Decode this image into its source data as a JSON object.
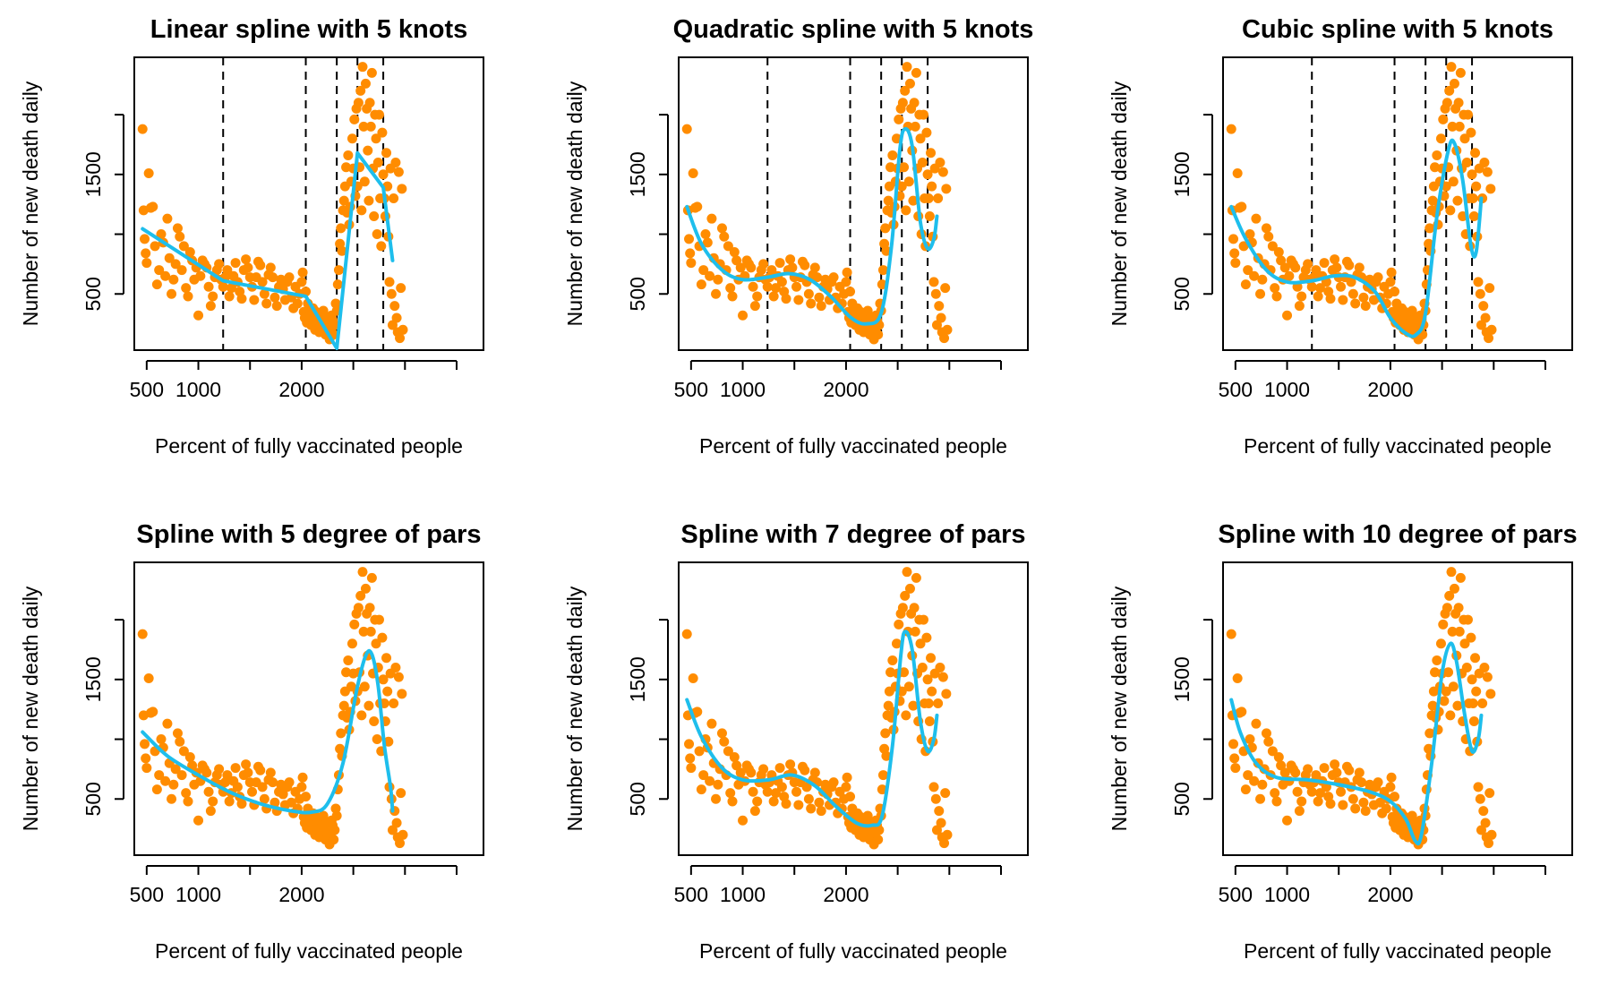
{
  "chart_data": [
    {
      "type": "scatter",
      "title": "Linear spline with 5 knots",
      "xlabel": "Percent of fully vaccinated people",
      "ylabel": "Number of new death daily",
      "xlim": [
        380,
        3760
      ],
      "ylim": [
        30,
        2480
      ],
      "xticks": [
        500,
        1000,
        1500,
        2000,
        2500,
        3000,
        3500
      ],
      "xtick_labels": [
        "500",
        "1000",
        "",
        "2000",
        "",
        "",
        ""
      ],
      "yticks": [
        500,
        1000,
        1500,
        2000
      ],
      "ytick_labels": [
        "500",
        "",
        "1500",
        ""
      ],
      "knots": [
        1240,
        2040,
        2340,
        2540,
        2790
      ],
      "series": [
        {
          "color": "#FF8C00",
          "points_ref": "observed"
        },
        {
          "color": "#1EBEEC",
          "curve": [
            [
              460,
              1045
            ],
            [
              1240,
              610
            ],
            [
              2040,
              480
            ],
            [
              2340,
              45
            ],
            [
              2540,
              1680
            ],
            [
              2790,
              1390
            ],
            [
              2880,
              780
            ]
          ]
        }
      ]
    },
    {
      "type": "scatter",
      "title": "Quadratic spline with 5 knots",
      "xlabel": "Percent of fully vaccinated people",
      "ylabel": "Number of new death daily",
      "xlim": [
        380,
        3760
      ],
      "ylim": [
        30,
        2480
      ],
      "xticks": [
        500,
        1000,
        1500,
        2000,
        2500,
        3000,
        3500
      ],
      "xtick_labels": [
        "500",
        "1000",
        "",
        "2000",
        "",
        "",
        ""
      ],
      "yticks": [
        500,
        1000,
        1500,
        2000
      ],
      "ytick_labels": [
        "500",
        "",
        "1500",
        ""
      ],
      "knots": [
        1240,
        2040,
        2340,
        2540,
        2790
      ],
      "series": [
        {
          "color": "#FF8C00",
          "points_ref": "observed"
        },
        {
          "color": "#1EBEEC",
          "curve": [
            [
              460,
              1230
            ],
            [
              600,
              920
            ],
            [
              800,
              700
            ],
            [
              1000,
              620
            ],
            [
              1240,
              640
            ],
            [
              1450,
              670
            ],
            [
              1650,
              620
            ],
            [
              1850,
              480
            ],
            [
              2050,
              300
            ],
            [
              2200,
              250
            ],
            [
              2340,
              340
            ],
            [
              2440,
              900
            ],
            [
              2520,
              1700
            ],
            [
              2570,
              1880
            ],
            [
              2640,
              1740
            ],
            [
              2720,
              1100
            ],
            [
              2790,
              880
            ],
            [
              2850,
              960
            ],
            [
              2880,
              1150
            ]
          ]
        }
      ]
    },
    {
      "type": "scatter",
      "title": "Cubic spline with 5 knots",
      "xlabel": "Percent of fully vaccinated people",
      "ylabel": "Number of new death daily",
      "xlim": [
        380,
        3760
      ],
      "ylim": [
        30,
        2480
      ],
      "xticks": [
        500,
        1000,
        1500,
        2000,
        2500,
        3000,
        3500
      ],
      "xtick_labels": [
        "500",
        "1000",
        "",
        "2000",
        "",
        "",
        ""
      ],
      "yticks": [
        500,
        1000,
        1500,
        2000
      ],
      "ytick_labels": [
        "500",
        "",
        "1500",
        ""
      ],
      "knots": [
        1240,
        2040,
        2340,
        2540,
        2790
      ],
      "series": [
        {
          "color": "#FF8C00",
          "points_ref": "observed"
        },
        {
          "color": "#1EBEEC",
          "curve": [
            [
              460,
              1230
            ],
            [
              600,
              960
            ],
            [
              800,
              700
            ],
            [
              1000,
              600
            ],
            [
              1240,
              610
            ],
            [
              1450,
              650
            ],
            [
              1650,
              640
            ],
            [
              1850,
              520
            ],
            [
              2000,
              300
            ],
            [
              2150,
              170
            ],
            [
              2250,
              160
            ],
            [
              2340,
              340
            ],
            [
              2450,
              1150
            ],
            [
              2560,
              1700
            ],
            [
              2620,
              1760
            ],
            [
              2700,
              1450
            ],
            [
              2780,
              900
            ],
            [
              2830,
              850
            ],
            [
              2880,
              1300
            ]
          ]
        }
      ]
    },
    {
      "type": "scatter",
      "title": "Spline with 5 degree of pars",
      "xlabel": "Percent of fully vaccinated people",
      "ylabel": "Number of new death daily",
      "xlim": [
        380,
        3760
      ],
      "ylim": [
        30,
        2480
      ],
      "xticks": [
        500,
        1000,
        1500,
        2000,
        2500,
        3000,
        3500
      ],
      "xtick_labels": [
        "500",
        "1000",
        "",
        "2000",
        "",
        "",
        ""
      ],
      "yticks": [
        500,
        1000,
        1500,
        2000
      ],
      "ytick_labels": [
        "500",
        "",
        "1500",
        ""
      ],
      "series": [
        {
          "color": "#FF8C00",
          "points_ref": "observed"
        },
        {
          "color": "#1EBEEC",
          "curve": [
            [
              460,
              1060
            ],
            [
              700,
              860
            ],
            [
              1000,
              700
            ],
            [
              1300,
              560
            ],
            [
              1600,
              460
            ],
            [
              1900,
              400
            ],
            [
              2100,
              390
            ],
            [
              2250,
              460
            ],
            [
              2400,
              800
            ],
            [
              2530,
              1400
            ],
            [
              2620,
              1700
            ],
            [
              2680,
              1710
            ],
            [
              2740,
              1450
            ],
            [
              2800,
              950
            ],
            [
              2860,
              600
            ],
            [
              2880,
              400
            ]
          ]
        }
      ]
    },
    {
      "type": "scatter",
      "title": "Spline with 7 degree of pars",
      "xlabel": "Percent of fully vaccinated people",
      "ylabel": "Number of new death daily",
      "xlim": [
        380,
        3760
      ],
      "ylim": [
        30,
        2480
      ],
      "xticks": [
        500,
        1000,
        1500,
        2000,
        2500,
        3000,
        3500
      ],
      "xtick_labels": [
        "500",
        "1000",
        "",
        "2000",
        "",
        "",
        ""
      ],
      "yticks": [
        500,
        1000,
        1500,
        2000
      ],
      "ytick_labels": [
        "500",
        "",
        "1500",
        ""
      ],
      "series": [
        {
          "color": "#FF8C00",
          "points_ref": "observed"
        },
        {
          "color": "#1EBEEC",
          "curve": [
            [
              460,
              1330
            ],
            [
              600,
              1020
            ],
            [
              800,
              760
            ],
            [
              1000,
              660
            ],
            [
              1250,
              660
            ],
            [
              1480,
              700
            ],
            [
              1700,
              610
            ],
            [
              1900,
              440
            ],
            [
              2100,
              300
            ],
            [
              2250,
              280
            ],
            [
              2350,
              360
            ],
            [
              2450,
              950
            ],
            [
              2530,
              1700
            ],
            [
              2570,
              1900
            ],
            [
              2640,
              1750
            ],
            [
              2720,
              1150
            ],
            [
              2790,
              900
            ],
            [
              2850,
              1000
            ],
            [
              2880,
              1200
            ]
          ]
        }
      ]
    },
    {
      "type": "scatter",
      "title": "Spline with 10 degree of pars",
      "xlabel": "Percent of fully vaccinated people",
      "ylabel": "Number of new death daily",
      "xlim": [
        380,
        3760
      ],
      "ylim": [
        30,
        2480
      ],
      "xticks": [
        500,
        1000,
        1500,
        2000,
        2500,
        3000,
        3500
      ],
      "xtick_labels": [
        "500",
        "1000",
        "",
        "2000",
        "",
        "",
        ""
      ],
      "yticks": [
        500,
        1000,
        1500,
        2000
      ],
      "ytick_labels": [
        "500",
        "",
        "1500",
        ""
      ],
      "series": [
        {
          "color": "#FF8C00",
          "points_ref": "observed"
        },
        {
          "color": "#1EBEEC",
          "curve": [
            [
              460,
              1330
            ],
            [
              550,
              1050
            ],
            [
              700,
              800
            ],
            [
              900,
              680
            ],
            [
              1200,
              660
            ],
            [
              1500,
              620
            ],
            [
              1800,
              560
            ],
            [
              2000,
              480
            ],
            [
              2150,
              330
            ],
            [
              2240,
              150
            ],
            [
              2300,
              200
            ],
            [
              2400,
              800
            ],
            [
              2500,
              1550
            ],
            [
              2580,
              1800
            ],
            [
              2640,
              1650
            ],
            [
              2720,
              1200
            ],
            [
              2790,
              900
            ],
            [
              2850,
              1000
            ],
            [
              2880,
              1200
            ]
          ]
        }
      ]
    }
  ],
  "observed_points": [
    [
      460,
      1880
    ],
    [
      470,
      1200
    ],
    [
      480,
      960
    ],
    [
      490,
      840
    ],
    [
      500,
      760
    ],
    [
      520,
      1510
    ],
    [
      540,
      1220
    ],
    [
      560,
      1230
    ],
    [
      580,
      900
    ],
    [
      600,
      580
    ],
    [
      620,
      700
    ],
    [
      640,
      1000
    ],
    [
      660,
      930
    ],
    [
      680,
      650
    ],
    [
      700,
      1130
    ],
    [
      720,
      800
    ],
    [
      740,
      500
    ],
    [
      760,
      620
    ],
    [
      780,
      750
    ],
    [
      800,
      1050
    ],
    [
      820,
      980
    ],
    [
      840,
      700
    ],
    [
      860,
      900
    ],
    [
      880,
      550
    ],
    [
      900,
      480
    ],
    [
      920,
      850
    ],
    [
      940,
      780
    ],
    [
      960,
      620
    ],
    [
      980,
      720
    ],
    [
      1000,
      320
    ],
    [
      1020,
      650
    ],
    [
      1040,
      780
    ],
    [
      1060,
      750
    ],
    [
      1080,
      720
    ],
    [
      1100,
      560
    ],
    [
      1120,
      400
    ],
    [
      1140,
      480
    ],
    [
      1160,
      640
    ],
    [
      1180,
      700
    ],
    [
      1200,
      750
    ],
    [
      1220,
      620
    ],
    [
      1240,
      560
    ],
    [
      1260,
      640
    ],
    [
      1280,
      700
    ],
    [
      1300,
      480
    ],
    [
      1320,
      550
    ],
    [
      1340,
      650
    ],
    [
      1360,
      760
    ],
    [
      1380,
      600
    ],
    [
      1400,
      520
    ],
    [
      1420,
      460
    ],
    [
      1440,
      700
    ],
    [
      1460,
      790
    ],
    [
      1480,
      720
    ],
    [
      1500,
      640
    ],
    [
      1520,
      560
    ],
    [
      1540,
      450
    ],
    [
      1560,
      640
    ],
    [
      1580,
      770
    ],
    [
      1600,
      740
    ],
    [
      1620,
      600
    ],
    [
      1640,
      500
    ],
    [
      1660,
      420
    ],
    [
      1680,
      660
    ],
    [
      1700,
      720
    ],
    [
      1720,
      640
    ],
    [
      1740,
      470
    ],
    [
      1760,
      400
    ],
    [
      1780,
      560
    ],
    [
      1800,
      620
    ],
    [
      1820,
      540
    ],
    [
      1840,
      450
    ],
    [
      1860,
      600
    ],
    [
      1880,
      640
    ],
    [
      1900,
      470
    ],
    [
      1920,
      380
    ],
    [
      1940,
      560
    ],
    [
      1960,
      420
    ],
    [
      1980,
      500
    ],
    [
      2000,
      600
    ],
    [
      2010,
      680
    ],
    [
      2020,
      350
    ],
    [
      2030,
      300
    ],
    [
      2040,
      520
    ],
    [
      2050,
      260
    ],
    [
      2060,
      420
    ],
    [
      2070,
      380
    ],
    [
      2080,
      320
    ],
    [
      2090,
      240
    ],
    [
      2100,
      300
    ],
    [
      2110,
      380
    ],
    [
      2120,
      280
    ],
    [
      2130,
      200
    ],
    [
      2140,
      350
    ],
    [
      2150,
      300
    ],
    [
      2160,
      240
    ],
    [
      2170,
      180
    ],
    [
      2180,
      320
    ],
    [
      2190,
      260
    ],
    [
      2200,
      200
    ],
    [
      2210,
      360
    ],
    [
      2220,
      280
    ],
    [
      2230,
      160
    ],
    [
      2240,
      220
    ],
    [
      2250,
      300
    ],
    [
      2260,
      150
    ],
    [
      2270,
      120
    ],
    [
      2280,
      200
    ],
    [
      2290,
      320
    ],
    [
      2300,
      280
    ],
    [
      2310,
      160
    ],
    [
      2320,
      240
    ],
    [
      2330,
      420
    ],
    [
      2340,
      360
    ],
    [
      2350,
      580
    ],
    [
      2360,
      700
    ],
    [
      2370,
      920
    ],
    [
      2380,
      1050
    ],
    [
      2390,
      860
    ],
    [
      2400,
      1200
    ],
    [
      2410,
      1280
    ],
    [
      2420,
      1400
    ],
    [
      2430,
      1560
    ],
    [
      2440,
      1180
    ],
    [
      2450,
      1660
    ],
    [
      2460,
      1080
    ],
    [
      2470,
      1230
    ],
    [
      2480,
      1440
    ],
    [
      2490,
      1800
    ],
    [
      2500,
      1550
    ],
    [
      2510,
      1960
    ],
    [
      2520,
      1320
    ],
    [
      2530,
      2050
    ],
    [
      2540,
      1400
    ],
    [
      2550,
      2100
    ],
    [
      2560,
      1560
    ],
    [
      2570,
      2200
    ],
    [
      2580,
      1200
    ],
    [
      2590,
      2400
    ],
    [
      2600,
      1900
    ],
    [
      2610,
      1440
    ],
    [
      2620,
      2260
    ],
    [
      2630,
      2050
    ],
    [
      2640,
      1700
    ],
    [
      2650,
      1280
    ],
    [
      2660,
      2100
    ],
    [
      2670,
      1900
    ],
    [
      2680,
      2350
    ],
    [
      2690,
      1550
    ],
    [
      2700,
      1150
    ],
    [
      2710,
      2000
    ],
    [
      2720,
      1800
    ],
    [
      2730,
      1000
    ],
    [
      2740,
      1600
    ],
    [
      2750,
      2000
    ],
    [
      2760,
      1300
    ],
    [
      2770,
      900
    ],
    [
      2780,
      1850
    ],
    [
      2790,
      1500
    ],
    [
      2800,
      1300
    ],
    [
      2810,
      1150
    ],
    [
      2820,
      1680
    ],
    [
      2830,
      1400
    ],
    [
      2840,
      980
    ],
    [
      2850,
      600
    ],
    [
      2860,
      1550
    ],
    [
      2870,
      500
    ],
    [
      2880,
      240
    ],
    [
      2890,
      1300
    ],
    [
      2900,
      400
    ],
    [
      2910,
      1600
    ],
    [
      2920,
      300
    ],
    [
      2930,
      180
    ],
    [
      2940,
      1520
    ],
    [
      2950,
      130
    ],
    [
      2960,
      550
    ],
    [
      2970,
      1380
    ],
    [
      2980,
      200
    ]
  ]
}
